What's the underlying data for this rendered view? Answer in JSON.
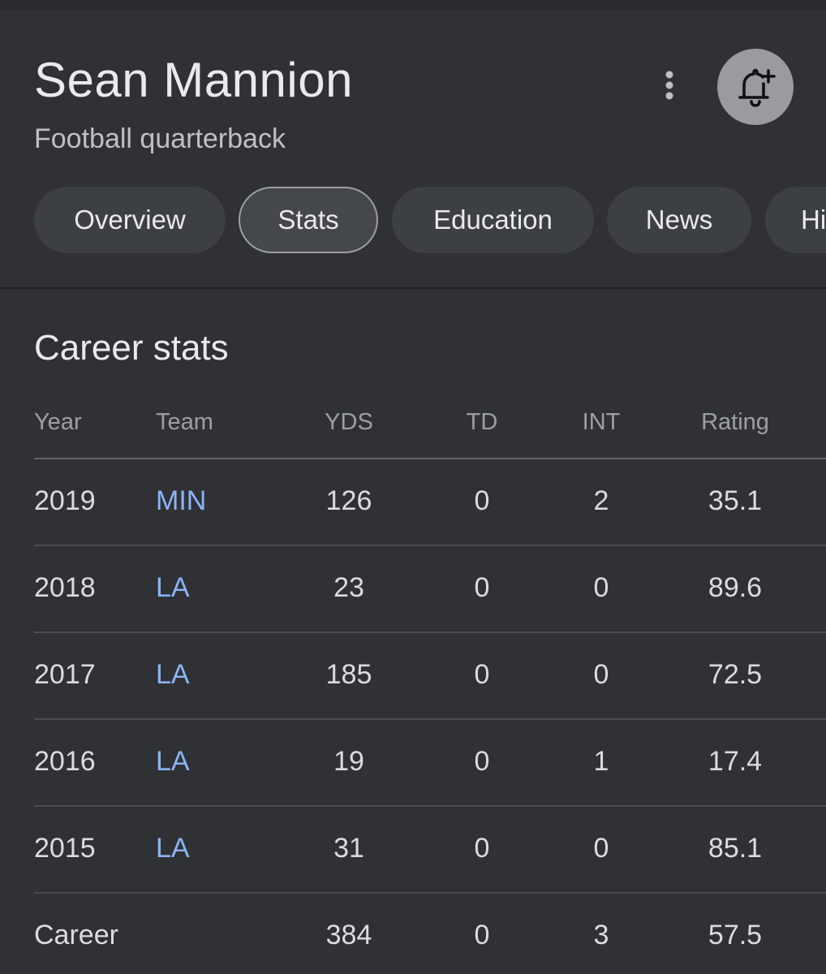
{
  "header": {
    "title": "Sean Mannion",
    "subtitle": "Football quarterback",
    "more_icon": "more-vert-icon",
    "follow_icon": "add-alert-bell-icon"
  },
  "tabs": [
    {
      "label": "Overview",
      "active": false
    },
    {
      "label": "Stats",
      "active": true
    },
    {
      "label": "Education",
      "active": false
    },
    {
      "label": "News",
      "active": false
    },
    {
      "label": "Hi",
      "active": false
    }
  ],
  "stats": {
    "title": "Career stats",
    "columns": [
      "Year",
      "Team",
      "YDS",
      "TD",
      "INT",
      "Rating"
    ],
    "rows": [
      {
        "year": "2019",
        "team": "MIN",
        "yds": "126",
        "td": "0",
        "int": "2",
        "rating": "35.1"
      },
      {
        "year": "2018",
        "team": "LA",
        "yds": "23",
        "td": "0",
        "int": "0",
        "rating": "89.6"
      },
      {
        "year": "2017",
        "team": "LA",
        "yds": "185",
        "td": "0",
        "int": "0",
        "rating": "72.5"
      },
      {
        "year": "2016",
        "team": "LA",
        "yds": "19",
        "td": "0",
        "int": "1",
        "rating": "17.4"
      },
      {
        "year": "2015",
        "team": "LA",
        "yds": "31",
        "td": "0",
        "int": "0",
        "rating": "85.1"
      }
    ],
    "career": {
      "label": "Career",
      "yds": "384",
      "td": "0",
      "int": "3",
      "rating": "57.5"
    }
  },
  "colors": {
    "background": "#303134",
    "link": "#8ab4f8",
    "text": "#e8eaed",
    "muted": "#9aa0a6"
  }
}
